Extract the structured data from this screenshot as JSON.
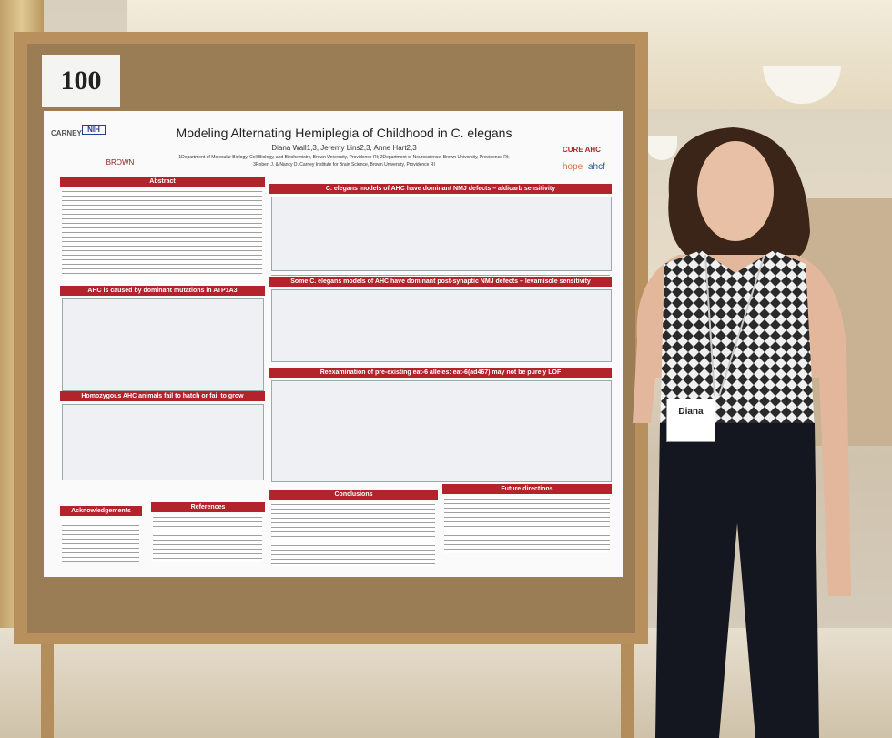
{
  "sign": {
    "number": "100"
  },
  "poster": {
    "title": "Modeling Alternating Hemiplegia of Childhood in C. elegans",
    "authors": "Diana Wall1,3, Jeremy Lins2,3, Anne Hart2,3",
    "affiliations": [
      "1Department of Molecular Biology, Cell Biology, and Biochemistry, Brown University, Providence RI; 2Department of Neuroscience, Brown University, Providence RI;",
      "3Robert J. & Nancy D. Carney Institute for Brain Science, Brown University, Providence RI"
    ],
    "logos": [
      "CARNEY",
      "NIH",
      "BROWN",
      "CURE AHC",
      "hope",
      "ahcf"
    ],
    "left_sections": [
      "Abstract",
      "AHC is caused by dominant mutations in ATP1A3",
      "Homozygous AHC animals fail to hatch or fail to grow"
    ],
    "bottom_left_sections": [
      "Acknowledgements",
      "References"
    ],
    "right_sections": [
      "C. elegans models of AHC have dominant NMJ defects – aldicarb sensitivity",
      "Some C. elegans models of AHC have dominant post-synaptic NMJ defects – levamisole sensitivity",
      "Reexamination of pre-existing eat-6 alleles: eat-6(ad467) may not be purely LOF"
    ],
    "bottom_right_sections": [
      "Conclusions",
      "Future directions"
    ]
  },
  "badge": {
    "name": "Diana"
  }
}
